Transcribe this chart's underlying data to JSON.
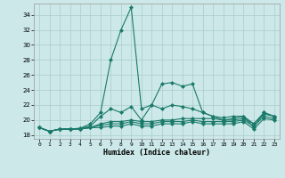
{
  "xlabel": "Humidex (Indice chaleur)",
  "background_color": "#cce8e8",
  "grid_color": "#aacccc",
  "line_color": "#1a7a6a",
  "xlim": [
    -0.5,
    23.5
  ],
  "ylim": [
    17.5,
    35.5
  ],
  "yticks": [
    18,
    20,
    22,
    24,
    26,
    28,
    30,
    32,
    34
  ],
  "xticks": [
    0,
    1,
    2,
    3,
    4,
    5,
    6,
    7,
    8,
    9,
    10,
    11,
    12,
    13,
    14,
    15,
    16,
    17,
    18,
    19,
    20,
    21,
    22,
    23
  ],
  "series": [
    [
      19.0,
      18.5,
      18.8,
      18.8,
      18.9,
      19.5,
      21.0,
      28.0,
      32.0,
      35.0,
      21.5,
      22.0,
      24.8,
      25.0,
      24.5,
      24.8,
      21.0,
      20.5,
      20.3,
      20.5,
      20.5,
      19.0,
      21.0,
      20.5
    ],
    [
      19.0,
      18.5,
      18.8,
      18.8,
      18.9,
      19.2,
      20.5,
      21.5,
      21.0,
      21.8,
      20.0,
      22.0,
      21.5,
      22.0,
      21.8,
      21.5,
      21.0,
      20.5,
      20.0,
      20.2,
      20.5,
      19.5,
      21.0,
      20.5
    ],
    [
      19.0,
      18.5,
      18.8,
      18.8,
      18.8,
      19.0,
      19.5,
      19.8,
      19.8,
      20.0,
      19.8,
      19.8,
      20.0,
      20.0,
      20.2,
      20.2,
      20.2,
      20.2,
      20.0,
      20.0,
      20.2,
      19.5,
      20.8,
      20.5
    ],
    [
      19.0,
      18.5,
      18.8,
      18.8,
      18.8,
      19.0,
      19.3,
      19.5,
      19.5,
      19.8,
      19.5,
      19.5,
      19.8,
      19.8,
      19.8,
      20.0,
      19.8,
      19.8,
      19.8,
      19.8,
      20.0,
      19.2,
      20.5,
      20.2
    ],
    [
      19.0,
      18.5,
      18.8,
      18.8,
      18.8,
      19.0,
      19.0,
      19.2,
      19.2,
      19.5,
      19.2,
      19.2,
      19.5,
      19.5,
      19.5,
      19.8,
      19.5,
      19.5,
      19.5,
      19.5,
      19.8,
      18.8,
      20.2,
      20.0
    ]
  ]
}
